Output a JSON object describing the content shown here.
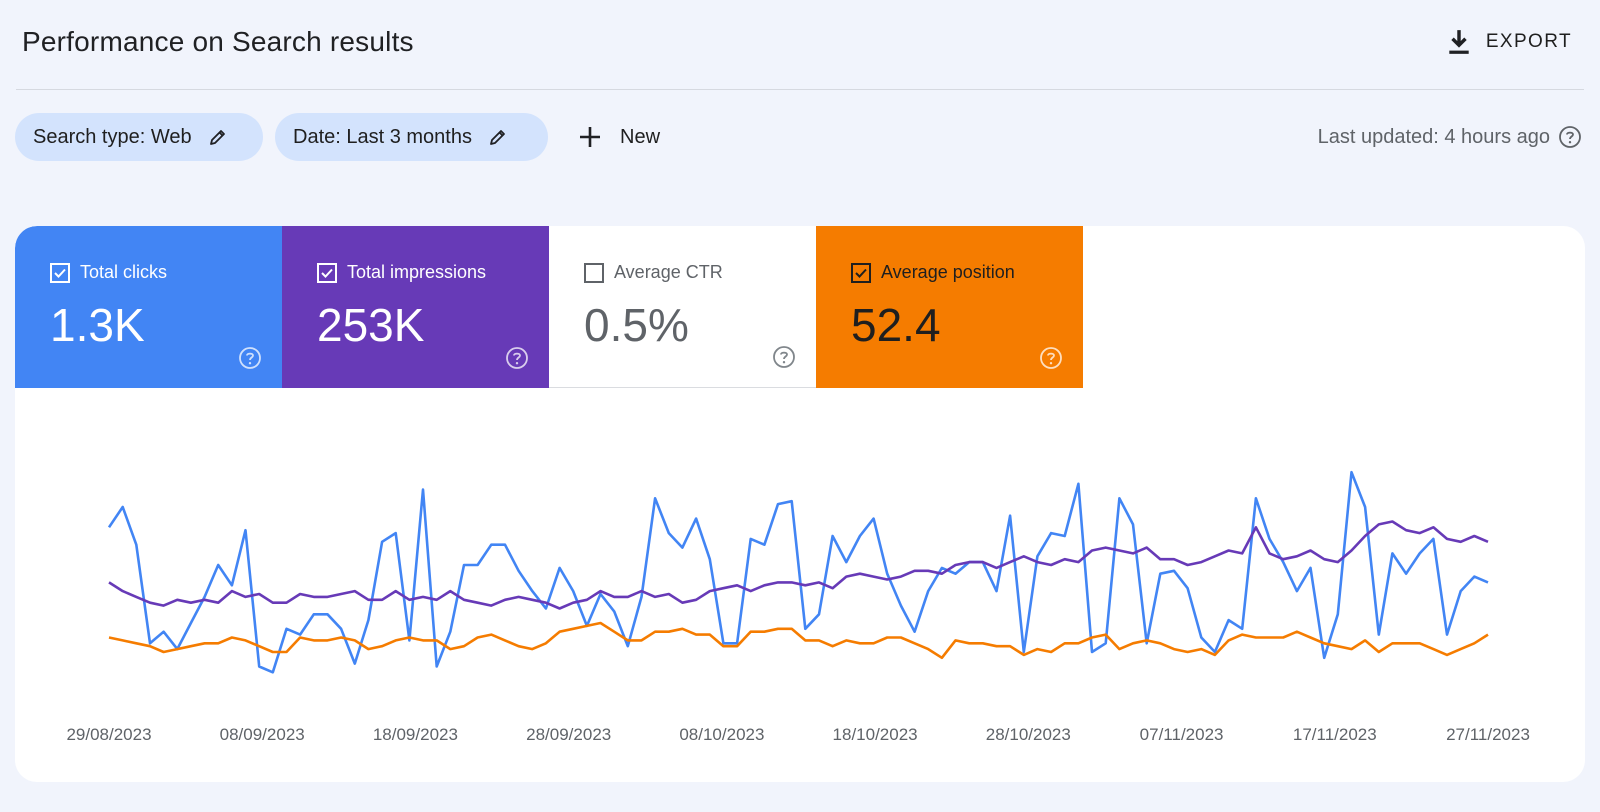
{
  "header": {
    "title": "Performance on Search results",
    "export_label": "EXPORT"
  },
  "filters": {
    "search_type": "Search type: Web",
    "date": "Date: Last 3 months",
    "new_label": "New",
    "last_updated": "Last updated: 4 hours ago"
  },
  "metrics": [
    {
      "label": "Total clicks",
      "value": "1.3K",
      "checked": true,
      "color": "#4285f4"
    },
    {
      "label": "Total impressions",
      "value": "253K",
      "checked": true,
      "color": "#673ab7"
    },
    {
      "label": "Average CTR",
      "value": "0.5%",
      "checked": false,
      "color": "#ffffff"
    },
    {
      "label": "Average position",
      "value": "52.4",
      "checked": true,
      "color": "#f57c00"
    }
  ],
  "icons": {
    "export": "download-icon",
    "edit": "pencil-icon",
    "new": "plus-icon",
    "help": "help-circle-icon",
    "checkbox": "checkbox-icon"
  },
  "chart_data": {
    "type": "line",
    "x_start": "29/08/2023",
    "x_end": "27/11/2023",
    "xtick_labels": [
      "29/08/2023",
      "08/09/2023",
      "18/09/2023",
      "28/09/2023",
      "08/10/2023",
      "18/10/2023",
      "28/10/2023",
      "07/11/2023",
      "17/11/2023",
      "27/11/2023"
    ],
    "grid": false,
    "legend": "none",
    "series": [
      {
        "name": "Total clicks",
        "color": "#4285f4",
        "values": [
          0.63,
          0.7,
          0.57,
          0.23,
          0.27,
          0.21,
          0.3,
          0.39,
          0.5,
          0.43,
          0.62,
          0.15,
          0.13,
          0.28,
          0.26,
          0.33,
          0.33,
          0.28,
          0.16,
          0.31,
          0.58,
          0.61,
          0.24,
          0.76,
          0.15,
          0.27,
          0.5,
          0.5,
          0.57,
          0.57,
          0.48,
          0.41,
          0.35,
          0.49,
          0.41,
          0.29,
          0.4,
          0.34,
          0.22,
          0.39,
          0.73,
          0.61,
          0.56,
          0.66,
          0.52,
          0.23,
          0.23,
          0.59,
          0.57,
          0.71,
          0.72,
          0.28,
          0.33,
          0.6,
          0.51,
          0.6,
          0.66,
          0.47,
          0.36,
          0.27,
          0.41,
          0.49,
          0.47,
          0.51,
          0.51,
          0.41,
          0.67,
          0.2,
          0.53,
          0.61,
          0.6,
          0.78,
          0.2,
          0.23,
          0.73,
          0.64,
          0.23,
          0.47,
          0.48,
          0.42,
          0.25,
          0.2,
          0.31,
          0.28,
          0.73,
          0.59,
          0.51,
          0.41,
          0.49,
          0.18,
          0.33,
          0.82,
          0.7,
          0.26,
          0.54,
          0.47,
          0.54,
          0.59,
          0.26,
          0.41,
          0.46,
          0.44
        ]
      },
      {
        "name": "Total impressions",
        "color": "#673ab7",
        "values": [
          0.44,
          0.41,
          0.39,
          0.37,
          0.36,
          0.38,
          0.37,
          0.38,
          0.37,
          0.41,
          0.39,
          0.4,
          0.37,
          0.37,
          0.4,
          0.39,
          0.39,
          0.4,
          0.41,
          0.38,
          0.38,
          0.41,
          0.38,
          0.39,
          0.38,
          0.41,
          0.38,
          0.37,
          0.36,
          0.38,
          0.39,
          0.38,
          0.37,
          0.35,
          0.37,
          0.38,
          0.41,
          0.39,
          0.39,
          0.41,
          0.39,
          0.4,
          0.37,
          0.38,
          0.41,
          0.42,
          0.43,
          0.41,
          0.43,
          0.44,
          0.44,
          0.43,
          0.44,
          0.42,
          0.46,
          0.47,
          0.46,
          0.45,
          0.46,
          0.48,
          0.48,
          0.47,
          0.5,
          0.51,
          0.51,
          0.49,
          0.51,
          0.53,
          0.51,
          0.5,
          0.52,
          0.51,
          0.55,
          0.56,
          0.55,
          0.54,
          0.56,
          0.52,
          0.52,
          0.5,
          0.51,
          0.53,
          0.55,
          0.54,
          0.63,
          0.54,
          0.52,
          0.53,
          0.55,
          0.52,
          0.51,
          0.55,
          0.6,
          0.64,
          0.65,
          0.62,
          0.61,
          0.63,
          0.59,
          0.58,
          0.6,
          0.58
        ]
      },
      {
        "name": "Average position",
        "color": "#f57c00",
        "values": [
          0.25,
          0.24,
          0.23,
          0.22,
          0.2,
          0.21,
          0.22,
          0.23,
          0.23,
          0.25,
          0.24,
          0.22,
          0.2,
          0.2,
          0.25,
          0.24,
          0.24,
          0.25,
          0.24,
          0.21,
          0.22,
          0.24,
          0.25,
          0.24,
          0.24,
          0.21,
          0.22,
          0.25,
          0.26,
          0.24,
          0.22,
          0.21,
          0.23,
          0.27,
          0.28,
          0.29,
          0.3,
          0.27,
          0.24,
          0.24,
          0.27,
          0.27,
          0.28,
          0.26,
          0.26,
          0.22,
          0.22,
          0.27,
          0.27,
          0.28,
          0.28,
          0.24,
          0.24,
          0.22,
          0.24,
          0.23,
          0.23,
          0.25,
          0.25,
          0.23,
          0.21,
          0.18,
          0.24,
          0.23,
          0.23,
          0.22,
          0.22,
          0.19,
          0.21,
          0.2,
          0.23,
          0.23,
          0.25,
          0.26,
          0.21,
          0.23,
          0.24,
          0.23,
          0.21,
          0.2,
          0.21,
          0.19,
          0.24,
          0.26,
          0.25,
          0.25,
          0.25,
          0.27,
          0.25,
          0.23,
          0.22,
          0.21,
          0.24,
          0.2,
          0.23,
          0.23,
          0.23,
          0.21,
          0.19,
          0.21,
          0.23,
          0.26
        ]
      }
    ]
  }
}
